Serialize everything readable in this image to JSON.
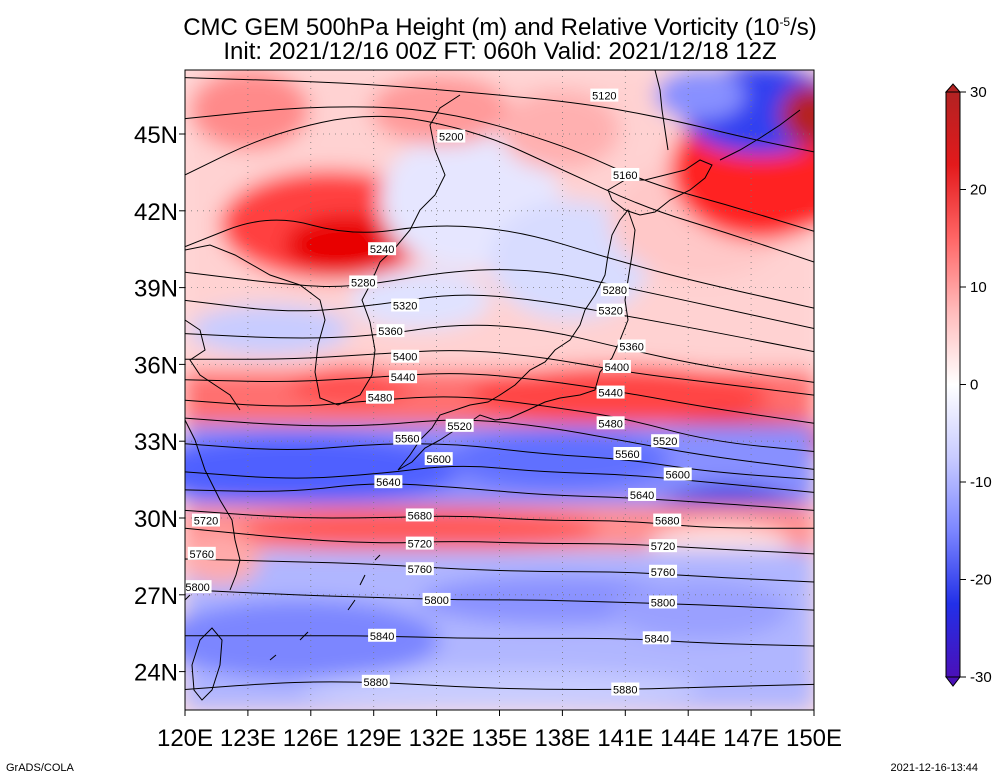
{
  "title": {
    "line1": "CMC GEM 500hPa Height (m) and Relative Vorticity (10",
    "line1_sup": "-5",
    "line1_end": "/s)",
    "line2": "Init: 2021/12/16 00Z  FT: 060h  Valid: 2021/12/18 12Z"
  },
  "footer": {
    "credit": "GrADS/COLA",
    "timestamp": "2021-12-16-13:44"
  },
  "map": {
    "lon_range": [
      120,
      150
    ],
    "lat_range": [
      22.5,
      47.5
    ],
    "lon_ticks": [
      "120E",
      "123E",
      "126E",
      "129E",
      "132E",
      "135E",
      "138E",
      "141E",
      "144E",
      "147E",
      "150E"
    ],
    "lat_ticks": [
      "24N",
      "27N",
      "30N",
      "33N",
      "36N",
      "39N",
      "42N",
      "45N"
    ],
    "height_contours": [
      {
        "label": "5120",
        "path": [
          [
            120,
            47.2
          ],
          [
            128,
            47.0
          ],
          [
            134,
            46.6
          ],
          [
            139,
            46.2
          ],
          [
            143,
            45.6
          ],
          [
            147,
            44.8
          ],
          [
            150,
            44.3
          ]
        ],
        "labels": [
          [
            140,
            46.5
          ]
        ]
      },
      {
        "label": "5160",
        "path": [
          [
            120,
            45.6
          ],
          [
            126,
            46.1
          ],
          [
            132,
            46.0
          ],
          [
            138,
            44.6
          ],
          [
            142,
            43.1
          ],
          [
            146,
            42.2
          ],
          [
            150,
            41.2
          ]
        ],
        "labels": [
          [
            141,
            43.4
          ]
        ]
      },
      {
        "label": "5200",
        "path": [
          [
            120,
            43.4
          ],
          [
            124,
            45.0
          ],
          [
            129,
            45.9
          ],
          [
            134,
            45.1
          ],
          [
            138,
            43.6
          ],
          [
            142,
            42.1
          ],
          [
            146,
            41.1
          ],
          [
            150,
            40.0
          ]
        ],
        "labels": [
          [
            132.7,
            44.9
          ]
        ]
      },
      {
        "label": "5240",
        "path": [
          [
            120,
            40.6
          ],
          [
            124,
            41.9
          ],
          [
            128,
            41.0
          ],
          [
            132,
            41.5
          ],
          [
            136,
            41.2
          ],
          [
            140,
            40.2
          ],
          [
            144,
            39.3
          ],
          [
            150,
            38.2
          ]
        ],
        "labels": [
          [
            129.4,
            40.5
          ]
        ]
      },
      {
        "label": "5280",
        "path": [
          [
            120,
            39.6
          ],
          [
            125,
            39.1
          ],
          [
            128,
            39.0
          ],
          [
            133,
            39.7
          ],
          [
            137,
            39.7
          ],
          [
            141,
            39.0
          ],
          [
            145,
            38.3
          ],
          [
            150,
            37.4
          ]
        ],
        "labels": [
          [
            128.5,
            39.2
          ],
          [
            140.5,
            38.9
          ]
        ]
      },
      {
        "label": "5320",
        "path": [
          [
            120,
            38.5
          ],
          [
            125,
            38.0
          ],
          [
            129,
            38.3
          ],
          [
            133,
            38.8
          ],
          [
            137,
            38.5
          ],
          [
            141,
            37.9
          ],
          [
            145,
            37.3
          ],
          [
            150,
            36.5
          ]
        ],
        "labels": [
          [
            130.5,
            38.3
          ],
          [
            140.3,
            38.1
          ]
        ]
      },
      {
        "label": "5360",
        "path": [
          [
            120,
            37.2
          ],
          [
            125,
            37.0
          ],
          [
            129,
            37.1
          ],
          [
            133,
            37.6
          ],
          [
            137,
            37.4
          ],
          [
            141,
            36.6
          ],
          [
            145,
            35.9
          ],
          [
            150,
            35.3
          ]
        ],
        "labels": [
          [
            129.8,
            37.3
          ],
          [
            141.3,
            36.7
          ]
        ]
      },
      {
        "label": "5400",
        "path": [
          [
            120,
            36.2
          ],
          [
            125,
            36.2
          ],
          [
            129,
            36.4
          ],
          [
            133,
            36.6
          ],
          [
            137,
            36.3
          ],
          [
            141,
            35.7
          ],
          [
            145,
            35.3
          ],
          [
            150,
            34.8
          ]
        ],
        "labels": [
          [
            130.5,
            36.3
          ],
          [
            140.6,
            35.9
          ]
        ]
      },
      {
        "label": "5440",
        "path": [
          [
            120,
            35.4
          ],
          [
            125,
            35.3
          ],
          [
            129,
            35.5
          ],
          [
            133,
            35.7
          ],
          [
            137,
            35.4
          ],
          [
            141,
            34.9
          ],
          [
            145,
            34.3
          ],
          [
            150,
            33.7
          ]
        ],
        "labels": [
          [
            130.4,
            35.5
          ],
          [
            140.3,
            34.9
          ]
        ]
      },
      {
        "label": "5480",
        "path": [
          [
            120,
            34.6
          ],
          [
            125,
            34.3
          ],
          [
            129,
            34.6
          ],
          [
            133,
            34.8
          ],
          [
            137,
            34.4
          ],
          [
            141,
            33.9
          ],
          [
            145,
            33.0
          ],
          [
            150,
            32.6
          ]
        ],
        "labels": [
          [
            129.3,
            34.7
          ],
          [
            140.3,
            33.7
          ]
        ]
      },
      {
        "label": "5520",
        "path": [
          [
            120,
            33.9
          ],
          [
            125,
            33.6
          ],
          [
            129,
            33.6
          ],
          [
            133,
            33.9
          ],
          [
            137,
            33.6
          ],
          [
            141,
            33.0
          ],
          [
            145,
            32.4
          ],
          [
            150,
            31.9
          ]
        ],
        "labels": [
          [
            133.1,
            33.6
          ],
          [
            142.9,
            33.0
          ]
        ]
      },
      {
        "label": "5560",
        "path": [
          [
            120,
            32.9
          ],
          [
            125,
            32.6
          ],
          [
            129,
            32.9
          ],
          [
            133,
            32.9
          ],
          [
            137,
            32.5
          ],
          [
            141,
            32.3
          ],
          [
            145,
            31.8
          ],
          [
            150,
            31.5
          ]
        ],
        "labels": [
          [
            130.6,
            33.1
          ],
          [
            141.1,
            32.5
          ]
        ]
      },
      {
        "label": "5600",
        "path": [
          [
            120,
            31.8
          ],
          [
            125,
            31.5
          ],
          [
            129,
            31.7
          ],
          [
            133,
            32.1
          ],
          [
            137,
            31.8
          ],
          [
            141,
            31.7
          ],
          [
            145,
            31.4
          ],
          [
            150,
            31.0
          ]
        ],
        "labels": [
          [
            132.1,
            32.3
          ],
          [
            143.5,
            31.7
          ]
        ]
      },
      {
        "label": "5640",
        "path": [
          [
            120,
            31.1
          ],
          [
            125,
            31.0
          ],
          [
            129,
            31.4
          ],
          [
            133,
            31.2
          ],
          [
            137,
            30.9
          ],
          [
            141,
            30.8
          ],
          [
            145,
            30.6
          ],
          [
            150,
            30.3
          ]
        ],
        "labels": [
          [
            129.7,
            31.4
          ],
          [
            141.8,
            30.9
          ]
        ]
      },
      {
        "label": "5680",
        "path": [
          [
            120,
            30.3
          ],
          [
            125,
            30.0
          ],
          [
            129,
            30.0
          ],
          [
            133,
            30.1
          ],
          [
            137,
            29.9
          ],
          [
            141,
            29.9
          ],
          [
            145,
            29.6
          ],
          [
            150,
            29.6
          ]
        ],
        "labels": [
          [
            131.2,
            30.1
          ],
          [
            143.0,
            29.9
          ]
        ]
      },
      {
        "label": "5720",
        "path": [
          [
            120,
            29.6
          ],
          [
            125,
            29.2
          ],
          [
            129,
            29.0
          ],
          [
            133,
            29.1
          ],
          [
            137,
            29.0
          ],
          [
            141,
            29.0
          ],
          [
            145,
            28.8
          ],
          [
            150,
            28.6
          ]
        ],
        "labels": [
          [
            121.0,
            29.9
          ],
          [
            131.2,
            29.0
          ],
          [
            142.8,
            28.9
          ]
        ]
      },
      {
        "label": "5760",
        "path": [
          [
            120,
            28.4
          ],
          [
            125,
            28.3
          ],
          [
            129,
            28.2
          ],
          [
            133,
            28.0
          ],
          [
            137,
            27.9
          ],
          [
            141,
            27.9
          ],
          [
            145,
            27.7
          ],
          [
            150,
            27.5
          ]
        ],
        "labels": [
          [
            120.8,
            28.6
          ],
          [
            131.2,
            28.0
          ],
          [
            142.8,
            27.9
          ]
        ]
      },
      {
        "label": "5800",
        "path": [
          [
            120,
            27.2
          ],
          [
            125,
            27.0
          ],
          [
            129,
            26.9
          ],
          [
            133,
            26.8
          ],
          [
            137,
            26.8
          ],
          [
            141,
            26.7
          ],
          [
            145,
            26.6
          ],
          [
            150,
            26.4
          ]
        ],
        "labels": [
          [
            120.6,
            27.3
          ],
          [
            132.0,
            26.8
          ],
          [
            142.8,
            26.7
          ]
        ]
      },
      {
        "label": "5840",
        "path": [
          [
            120,
            25.4
          ],
          [
            125,
            25.4
          ],
          [
            129,
            25.4
          ],
          [
            133,
            25.3
          ],
          [
            137,
            25.3
          ],
          [
            141,
            25.3
          ],
          [
            145,
            25.1
          ],
          [
            150,
            25.0
          ]
        ],
        "labels": [
          [
            129.4,
            25.4
          ],
          [
            142.5,
            25.3
          ]
        ]
      },
      {
        "label": "5880",
        "path": [
          [
            120,
            23.3
          ],
          [
            125,
            23.6
          ],
          [
            129,
            23.6
          ],
          [
            133,
            23.4
          ],
          [
            137,
            23.3
          ],
          [
            141,
            23.3
          ],
          [
            145,
            23.4
          ],
          [
            150,
            23.5
          ]
        ],
        "labels": [
          [
            129.1,
            23.6
          ],
          [
            141.0,
            23.3
          ]
        ]
      }
    ]
  },
  "colorbar": {
    "ticks": [
      "30",
      "20",
      "10",
      "0",
      "-10",
      "-20",
      "-30"
    ],
    "colors": [
      "#b22222",
      "#e31a1c",
      "#ff6666",
      "#ffbbbb",
      "#ffffff",
      "#c8cbff",
      "#7c86ff",
      "#2230e8",
      "#4a10b8"
    ]
  },
  "colors": {
    "positive_strong": "#e00000",
    "positive_weak": "#ffb4b4",
    "negative_weak": "#c4c8ff",
    "negative_strong": "#1f2fe0"
  }
}
